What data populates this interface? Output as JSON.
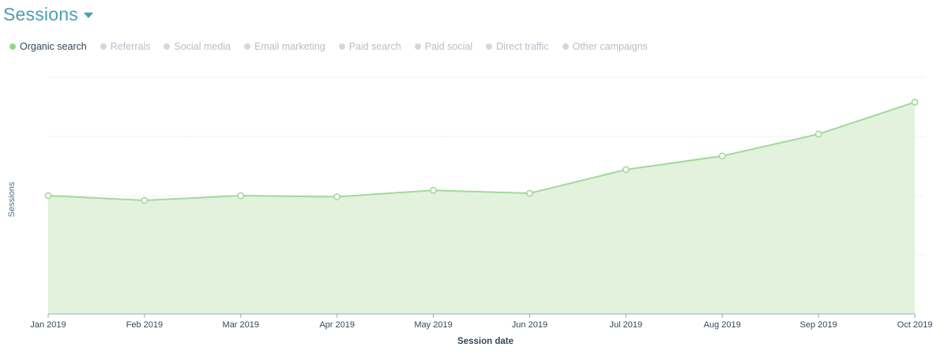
{
  "header": {
    "title": "Sessions",
    "dropdown_icon": "caret-down-icon"
  },
  "legend": {
    "items": [
      {
        "label": "Organic search",
        "active": true
      },
      {
        "label": "Referrals",
        "active": false
      },
      {
        "label": "Social media",
        "active": false
      },
      {
        "label": "Email marketing",
        "active": false
      },
      {
        "label": "Paid search",
        "active": false
      },
      {
        "label": "Paid social",
        "active": false
      },
      {
        "label": "Direct traffic",
        "active": false
      },
      {
        "label": "Other campaigns",
        "active": false
      }
    ]
  },
  "colors": {
    "title": "#4a9fb0",
    "line": "#a3d99a",
    "fill": "#e2f2dd",
    "active_dot": "#96d58c",
    "inactive_dot": "#d4d8dc",
    "active_text": "#33475b",
    "inactive_text": "#b6bec6",
    "grid": "#e3e7eb"
  },
  "chart_data": {
    "type": "area",
    "title": "Sessions",
    "xlabel": "Session date",
    "ylabel": "Sessions",
    "categories": [
      "Jan 2019",
      "Feb 2019",
      "Mar 2019",
      "Apr 2019",
      "May 2019",
      "Jun 2019",
      "Jul 2019",
      "Aug 2019",
      "Sep 2019",
      "Oct 2019"
    ],
    "series": [
      {
        "name": "Organic search",
        "values": [
          2.0,
          1.92,
          2.0,
          1.98,
          2.09,
          2.04,
          2.44,
          2.67,
          3.04,
          3.58
        ]
      }
    ],
    "ylim": [
      0,
      4
    ],
    "y_tick_labels_visible": false,
    "grid": true,
    "legend_position": "top-left"
  }
}
